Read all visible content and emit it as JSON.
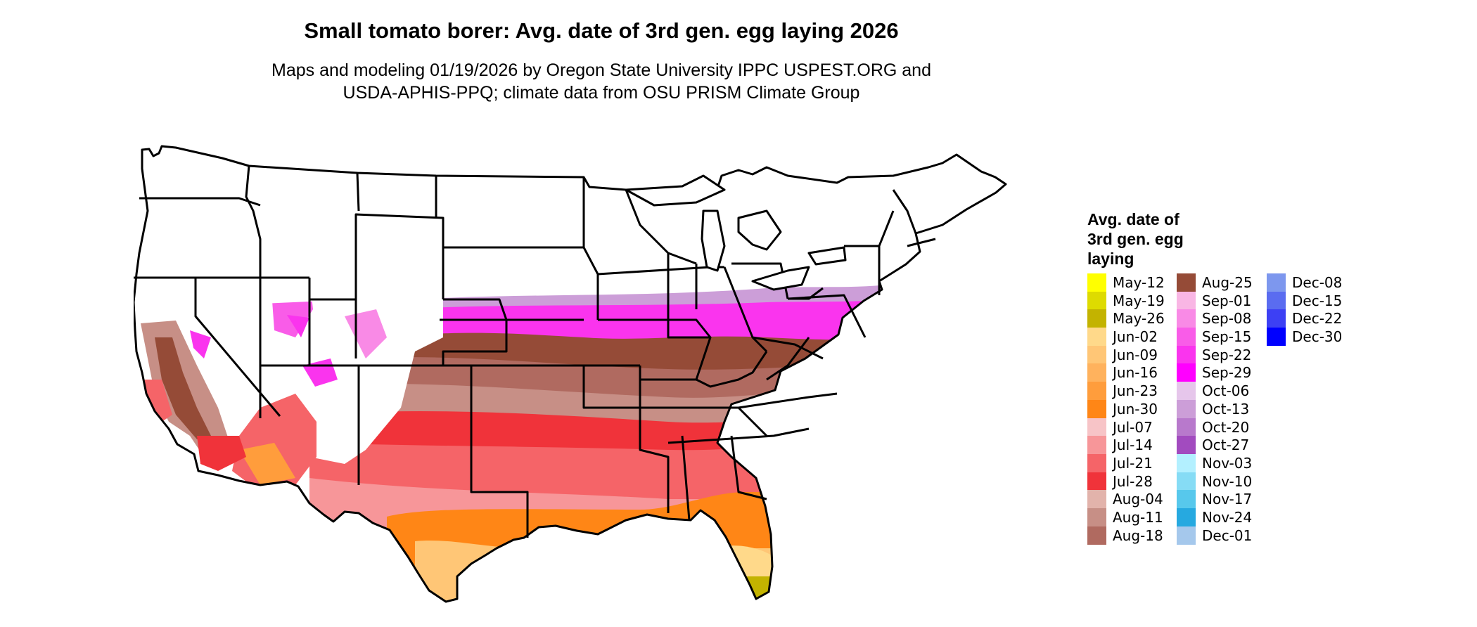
{
  "title": "Small tomato borer: Avg. date of 3rd gen. egg laying 2026",
  "subtitle_line1": "Maps and modeling 01/19/2026 by Oregon State University IPPC USPEST.ORG and",
  "subtitle_line2": "USDA-APHIS-PPQ; climate data from OSU PRISM Climate Group",
  "legend": {
    "title_lines": [
      "Avg. date of",
      "3rd gen. egg",
      "laying"
    ],
    "columns": [
      [
        {
          "label": "May-12",
          "color": "#ffff00"
        },
        {
          "label": "May-19",
          "color": "#dedb00"
        },
        {
          "label": "May-26",
          "color": "#c3b300"
        },
        {
          "label": "Jun-02",
          "color": "#ffd98a"
        },
        {
          "label": "Jun-09",
          "color": "#ffc676"
        },
        {
          "label": "Jun-16",
          "color": "#ffb25d"
        },
        {
          "label": "Jun-23",
          "color": "#ff9d3c"
        },
        {
          "label": "Jun-30",
          "color": "#ff8616"
        },
        {
          "label": "Jul-07",
          "color": "#f7c4c7"
        },
        {
          "label": "Jul-14",
          "color": "#f79699"
        },
        {
          "label": "Jul-21",
          "color": "#f56468"
        },
        {
          "label": "Jul-28",
          "color": "#f0333a"
        },
        {
          "label": "Aug-04",
          "color": "#e2b3ab"
        },
        {
          "label": "Aug-11",
          "color": "#c78f86"
        },
        {
          "label": "Aug-18",
          "color": "#b06a60"
        }
      ],
      [
        {
          "label": "Aug-25",
          "color": "#954b37"
        },
        {
          "label": "Sep-01",
          "color": "#f9b6e4"
        },
        {
          "label": "Sep-08",
          "color": "#f98ae6"
        },
        {
          "label": "Sep-15",
          "color": "#f95ce8"
        },
        {
          "label": "Sep-22",
          "color": "#fa34ee"
        },
        {
          "label": "Sep-29",
          "color": "#ff00ff"
        },
        {
          "label": "Oct-06",
          "color": "#e6c6eb"
        },
        {
          "label": "Oct-13",
          "color": "#cc9ed8"
        },
        {
          "label": "Oct-20",
          "color": "#b879cc"
        },
        {
          "label": "Oct-27",
          "color": "#a24bbf"
        },
        {
          "label": "Nov-03",
          "color": "#b3f0ff"
        },
        {
          "label": "Nov-10",
          "color": "#86dcf5"
        },
        {
          "label": "Nov-17",
          "color": "#57c8ec"
        },
        {
          "label": "Nov-24",
          "color": "#26a9e0"
        },
        {
          "label": "Dec-01",
          "color": "#a5c8ec"
        }
      ],
      [
        {
          "label": "Dec-08",
          "color": "#7d97ee"
        },
        {
          "label": "Dec-15",
          "color": "#5a6cf0"
        },
        {
          "label": "Dec-22",
          "color": "#3d40f4"
        },
        {
          "label": "Dec-30",
          "color": "#0000ff"
        }
      ]
    ]
  }
}
